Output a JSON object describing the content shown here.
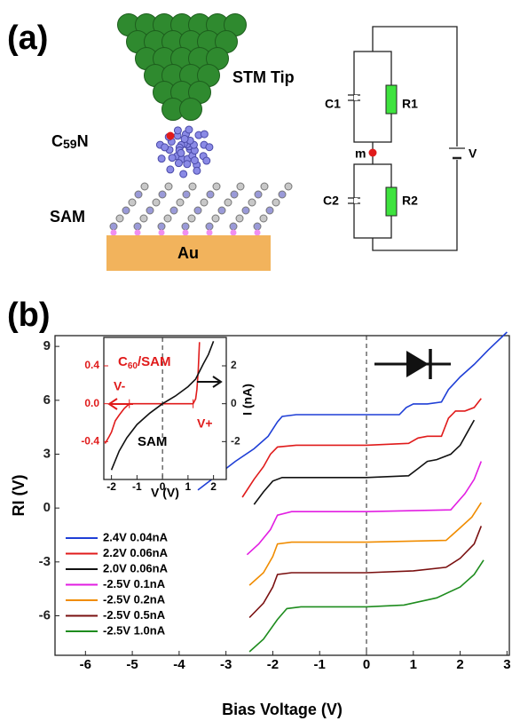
{
  "panel_a": {
    "label": "(a)",
    "tip": "STM Tip",
    "molecule": {
      "base": "C",
      "sub": "59",
      "tail": "N"
    },
    "sam": "SAM",
    "substrate": "Au",
    "circuit": {
      "c1": "C1",
      "r1": "R1",
      "node": "m",
      "c2": "C2",
      "r2": "R2",
      "source": "V"
    }
  },
  "panel_b": {
    "label": "(b)"
  },
  "chart_data": [
    {
      "type": "line",
      "xlabel": "Bias Voltage (V)",
      "ylabel": "RI (V)",
      "xlim": [
        -6.65,
        3.05
      ],
      "ylim": [
        -8.2,
        9.6
      ],
      "xticks": [
        -6,
        -5,
        -4,
        -3,
        -2,
        -1,
        0,
        1,
        2,
        3
      ],
      "yticks": [
        -6,
        -3,
        0,
        3,
        6,
        9
      ],
      "legend": "lower left",
      "series": [
        {
          "name": "2.4V 0.04nA",
          "color": "#1f3fd6",
          "x": [
            -3.6,
            -3.2,
            -2.8,
            -2.4,
            -2.1,
            -1.9,
            -1.8,
            -1.5,
            -1.0,
            0,
            0.7,
            0.85,
            1.0,
            1.3,
            1.6,
            1.75,
            2.0,
            2.3,
            2.6,
            3.0
          ],
          "values": [
            1.0,
            1.8,
            2.6,
            3.3,
            4.0,
            4.8,
            5.1,
            5.2,
            5.2,
            5.2,
            5.2,
            5.6,
            5.8,
            5.8,
            5.9,
            6.6,
            7.3,
            8.0,
            8.8,
            9.8
          ]
        },
        {
          "name": "2.2V 0.06nA",
          "color": "#e01b1b",
          "x": [
            -2.65,
            -2.4,
            -2.2,
            -2.05,
            -1.9,
            -1.5,
            0,
            0.9,
            1.1,
            1.3,
            1.6,
            1.75,
            1.9,
            2.1,
            2.3,
            2.45
          ],
          "values": [
            0.6,
            1.6,
            2.3,
            3.0,
            3.4,
            3.5,
            3.5,
            3.6,
            3.9,
            4.0,
            4.0,
            5.0,
            5.4,
            5.4,
            5.6,
            6.1
          ]
        },
        {
          "name": "2.0V 0.06nA",
          "color": "#111111",
          "x": [
            -2.4,
            -2.2,
            -2.0,
            -1.8,
            -1.5,
            0,
            0.9,
            1.1,
            1.3,
            1.5,
            1.8,
            2.0,
            2.15,
            2.3
          ],
          "values": [
            0.2,
            0.9,
            1.5,
            1.7,
            1.7,
            1.7,
            1.8,
            2.2,
            2.6,
            2.7,
            3.0,
            3.5,
            4.2,
            4.9
          ]
        },
        {
          "name": "-2.5V 0.1nA",
          "color": "#e21ee2",
          "x": [
            -2.55,
            -2.3,
            -2.05,
            -1.9,
            -1.6,
            0,
            1.8,
            2.1,
            2.3,
            2.45
          ],
          "values": [
            -2.6,
            -2.0,
            -1.2,
            -0.4,
            -0.2,
            -0.2,
            -0.1,
            0.8,
            1.6,
            2.6
          ]
        },
        {
          "name": "-2.5V 0.2nA",
          "color": "#f08c00",
          "x": [
            -2.5,
            -2.2,
            -2.0,
            -1.9,
            -1.6,
            0,
            1.7,
            2.0,
            2.25,
            2.45
          ],
          "values": [
            -4.3,
            -3.6,
            -2.7,
            -2.0,
            -1.9,
            -1.9,
            -1.8,
            -1.1,
            -0.5,
            0.3
          ]
        },
        {
          "name": "-2.5V 0.5nA",
          "color": "#7a1010",
          "x": [
            -2.5,
            -2.2,
            -2.0,
            -1.9,
            -1.6,
            0,
            1.0,
            1.7,
            2.0,
            2.3,
            2.45
          ],
          "values": [
            -6.1,
            -5.3,
            -4.4,
            -3.7,
            -3.6,
            -3.6,
            -3.5,
            -3.3,
            -2.8,
            -2.0,
            -1.0
          ]
        },
        {
          "name": "-2.5V 1.0nA",
          "color": "#1e8c1e",
          "x": [
            -2.5,
            -2.2,
            -1.9,
            -1.7,
            -1.4,
            0,
            0.8,
            1.5,
            2.0,
            2.3,
            2.5
          ],
          "values": [
            -8.0,
            -7.3,
            -6.2,
            -5.6,
            -5.5,
            -5.5,
            -5.4,
            -5.0,
            -4.4,
            -3.7,
            -2.9
          ]
        }
      ]
    },
    {
      "type": "line",
      "xlabel": "V (V)",
      "y2label": "I (nA)",
      "xlim": [
        -2.3,
        2.5
      ],
      "ylim": [
        -0.8,
        0.7
      ],
      "y2lim": [
        -4,
        3.5
      ],
      "xticks": [
        -2,
        -1,
        0,
        1,
        2
      ],
      "yticks": [
        -0.4,
        {
          "value": 0,
          "label": "0.0"
        },
        0.4
      ],
      "y2ticks": [
        -2,
        0,
        2
      ],
      "annotations": {
        "c60sam": {
          "base": "C",
          "sub": "60",
          "tail": "/SAM"
        },
        "v_minus": "V-",
        "v_plus": "V+"
      },
      "series": [
        {
          "color": "#e01b1b",
          "x": [
            -2.25,
            -2.1,
            -2.0,
            -1.85,
            -1.7,
            -1.5,
            -1.3,
            0,
            1.2,
            1.3,
            1.35,
            1.4,
            1.45
          ],
          "values": [
            -0.42,
            -0.35,
            -0.3,
            -0.18,
            -0.12,
            -0.05,
            0.0,
            0.0,
            0.0,
            0.05,
            0.15,
            0.35,
            0.65
          ]
        },
        {
          "name": "SAM",
          "color": "#111111",
          "axis": "y2",
          "x": [
            -2.0,
            -1.7,
            -1.4,
            -1.0,
            -0.5,
            0,
            0.5,
            1.0,
            1.3,
            1.6,
            1.8,
            2.0
          ],
          "values": [
            -3.5,
            -2.5,
            -1.8,
            -1.1,
            -0.5,
            0,
            0.4,
            0.9,
            1.3,
            2.1,
            2.6,
            3.3
          ]
        }
      ]
    }
  ]
}
